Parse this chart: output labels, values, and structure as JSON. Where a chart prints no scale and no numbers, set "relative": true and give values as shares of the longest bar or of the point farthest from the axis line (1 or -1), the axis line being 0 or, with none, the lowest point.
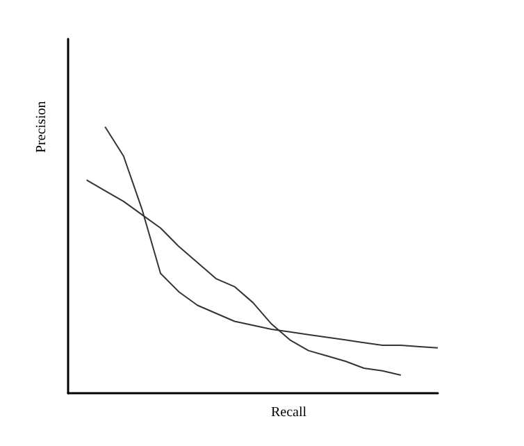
{
  "chart_data": {
    "type": "line",
    "relative": true,
    "xlabel": "Recall",
    "ylabel": "Precision",
    "categories": [
      null,
      null,
      null,
      null,
      null,
      null,
      null,
      null,
      null,
      null,
      null,
      null,
      null,
      null,
      null,
      null,
      null,
      null,
      null,
      null,
      null
    ],
    "grid": false,
    "marker": "none",
    "line_style": "solid",
    "series": [
      {
        "color": "#333333",
        "values": [
          null,
          null,
          1,
          0.89,
          0.69,
          0.45,
          0.38,
          0.33,
          0.3,
          0.27,
          0.255,
          0.24,
          0.23,
          0.22,
          0.21,
          0.2,
          0.19,
          0.18,
          0.18,
          0.175,
          0.17
        ]
      },
      {
        "color": "#333333",
        "values": [
          null,
          0.8,
          0.76,
          0.72,
          0.67,
          0.62,
          0.55,
          0.49,
          0.43,
          0.4,
          0.34,
          0.26,
          0.2,
          0.16,
          0.14,
          0.12,
          0.094,
          0.084,
          0.068,
          null,
          null
        ]
      }
    ]
  }
}
